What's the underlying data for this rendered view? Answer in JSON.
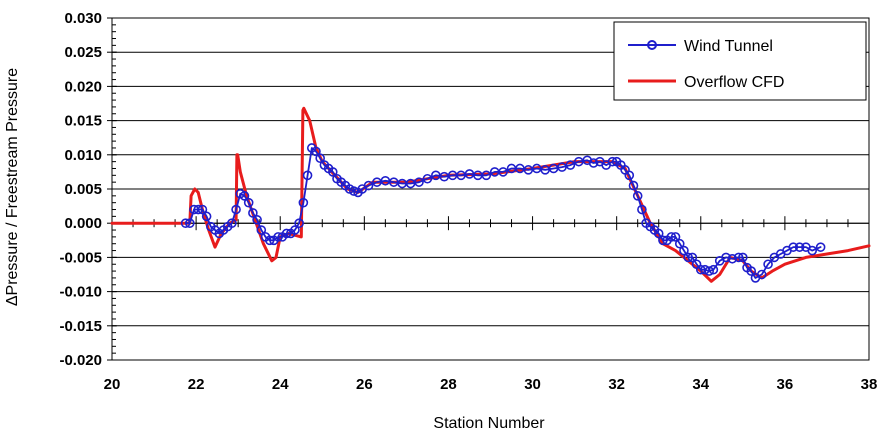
{
  "chart_data": {
    "type": "line",
    "title": "",
    "xlabel": "Station Number",
    "ylabel": "ΔPressure / Freestream Pressure",
    "xlim": [
      20,
      38
    ],
    "ylim": [
      -0.02,
      0.03
    ],
    "x_ticks": [
      20,
      22,
      24,
      26,
      28,
      30,
      32,
      34,
      36,
      38
    ],
    "x_tick_labels": [
      "20",
      "22",
      "24",
      "26",
      "28",
      "30",
      "32",
      "34",
      "36",
      "38"
    ],
    "y_ticks": [
      0.03,
      0.025,
      0.02,
      0.015,
      0.01,
      0.005,
      0.0,
      -0.005,
      -0.01,
      -0.015,
      -0.02
    ],
    "y_tick_labels": [
      "0.030",
      "0.025",
      "0.020",
      "0.015",
      "0.010",
      "0.005",
      "0.000",
      "-0.005",
      "-0.010",
      "-0.015",
      "-0.020"
    ],
    "grid": "horizontal",
    "legend_position": "top-right",
    "series": [
      {
        "name": "Wind Tunnel",
        "color": "#1f1fcc",
        "marker": "circle",
        "x": [
          21.75,
          21.85,
          21.95,
          22.05,
          22.15,
          22.25,
          22.35,
          22.45,
          22.55,
          22.65,
          22.75,
          22.85,
          22.95,
          23.05,
          23.15,
          23.25,
          23.35,
          23.45,
          23.55,
          23.65,
          23.75,
          23.85,
          23.95,
          24.05,
          24.15,
          24.25,
          24.35,
          24.45,
          24.55,
          24.65,
          24.75,
          24.85,
          24.95,
          25.05,
          25.15,
          25.25,
          25.35,
          25.45,
          25.55,
          25.65,
          25.75,
          25.85,
          25.95,
          26.1,
          26.3,
          26.5,
          26.7,
          26.9,
          27.1,
          27.3,
          27.5,
          27.7,
          27.9,
          28.1,
          28.3,
          28.5,
          28.7,
          28.9,
          29.1,
          29.3,
          29.5,
          29.7,
          29.9,
          30.1,
          30.3,
          30.5,
          30.7,
          30.9,
          31.1,
          31.3,
          31.45,
          31.6,
          31.75,
          31.9,
          32.0,
          32.1,
          32.2,
          32.3,
          32.4,
          32.5,
          32.6,
          32.7,
          32.8,
          32.9,
          33.0,
          33.1,
          33.2,
          33.3,
          33.4,
          33.5,
          33.6,
          33.7,
          33.8,
          33.9,
          34.0,
          34.1,
          34.2,
          34.3,
          34.45,
          34.6,
          34.75,
          34.9,
          35.0,
          35.1,
          35.2,
          35.3,
          35.45,
          35.6,
          35.75,
          35.9,
          36.05,
          36.2,
          36.35,
          36.5,
          36.65,
          36.85
        ],
        "y": [
          0.0,
          0.0,
          0.002,
          0.002,
          0.002,
          0.001,
          -0.0005,
          -0.001,
          -0.0015,
          -0.001,
          -0.0005,
          0.0,
          0.002,
          0.0043,
          0.004,
          0.003,
          0.0015,
          0.0005,
          -0.001,
          -0.002,
          -0.0025,
          -0.0025,
          -0.002,
          -0.002,
          -0.0015,
          -0.0015,
          -0.001,
          0.0,
          0.003,
          0.007,
          0.011,
          0.0105,
          0.0095,
          0.0085,
          0.008,
          0.0075,
          0.0065,
          0.006,
          0.0055,
          0.005,
          0.0047,
          0.0045,
          0.005,
          0.0055,
          0.006,
          0.0062,
          0.006,
          0.0058,
          0.0058,
          0.006,
          0.0065,
          0.007,
          0.0068,
          0.007,
          0.007,
          0.0072,
          0.007,
          0.007,
          0.0075,
          0.0075,
          0.008,
          0.008,
          0.0078,
          0.008,
          0.0078,
          0.008,
          0.0082,
          0.0085,
          0.009,
          0.0092,
          0.0088,
          0.009,
          0.0085,
          0.009,
          0.009,
          0.0085,
          0.0078,
          0.007,
          0.0055,
          0.004,
          0.002,
          0.0,
          -0.0005,
          -0.001,
          -0.0015,
          -0.0025,
          -0.0025,
          -0.002,
          -0.002,
          -0.003,
          -0.004,
          -0.005,
          -0.005,
          -0.006,
          -0.0068,
          -0.0068,
          -0.007,
          -0.0068,
          -0.0055,
          -0.005,
          -0.0052,
          -0.005,
          -0.005,
          -0.0065,
          -0.007,
          -0.008,
          -0.0075,
          -0.006,
          -0.005,
          -0.0045,
          -0.004,
          -0.0035,
          -0.0035,
          -0.0035,
          -0.004,
          -0.0035
        ]
      },
      {
        "name": "Overflow CFD",
        "color": "#e81c1c",
        "marker": "none",
        "x": [
          20.0,
          21.85,
          21.88,
          21.97,
          22.05,
          22.15,
          22.3,
          22.45,
          22.6,
          22.8,
          22.95,
          22.97,
          22.99,
          23.05,
          23.2,
          23.4,
          23.6,
          23.8,
          23.9,
          24.0,
          24.2,
          24.5,
          24.54,
          24.56,
          24.7,
          24.85,
          25.0,
          25.3,
          25.6,
          25.85,
          26.2,
          27.0,
          28.0,
          29.0,
          30.0,
          31.0,
          31.5,
          31.9,
          32.2,
          32.5,
          32.8,
          33.1,
          33.4,
          33.7,
          34.0,
          34.25,
          34.45,
          34.7,
          35.0,
          35.2,
          35.45,
          35.7,
          36.0,
          36.5,
          37.0,
          37.5,
          38.0
        ],
        "y": [
          0.0,
          0.0,
          0.004,
          0.005,
          0.0045,
          0.002,
          -0.001,
          -0.0035,
          -0.0015,
          0.0,
          0.0005,
          0.01,
          0.01,
          0.0075,
          0.004,
          0.0005,
          -0.003,
          -0.0055,
          -0.005,
          -0.002,
          -0.0015,
          -0.002,
          0.0165,
          0.0168,
          0.015,
          0.011,
          0.009,
          0.007,
          0.005,
          0.0045,
          0.006,
          0.006,
          0.007,
          0.0072,
          0.008,
          0.009,
          0.009,
          0.009,
          0.008,
          0.004,
          0.0,
          -0.003,
          -0.004,
          -0.0055,
          -0.007,
          -0.0085,
          -0.0075,
          -0.005,
          -0.0055,
          -0.007,
          -0.008,
          -0.007,
          -0.006,
          -0.005,
          -0.0045,
          -0.004,
          -0.0033
        ]
      }
    ]
  }
}
